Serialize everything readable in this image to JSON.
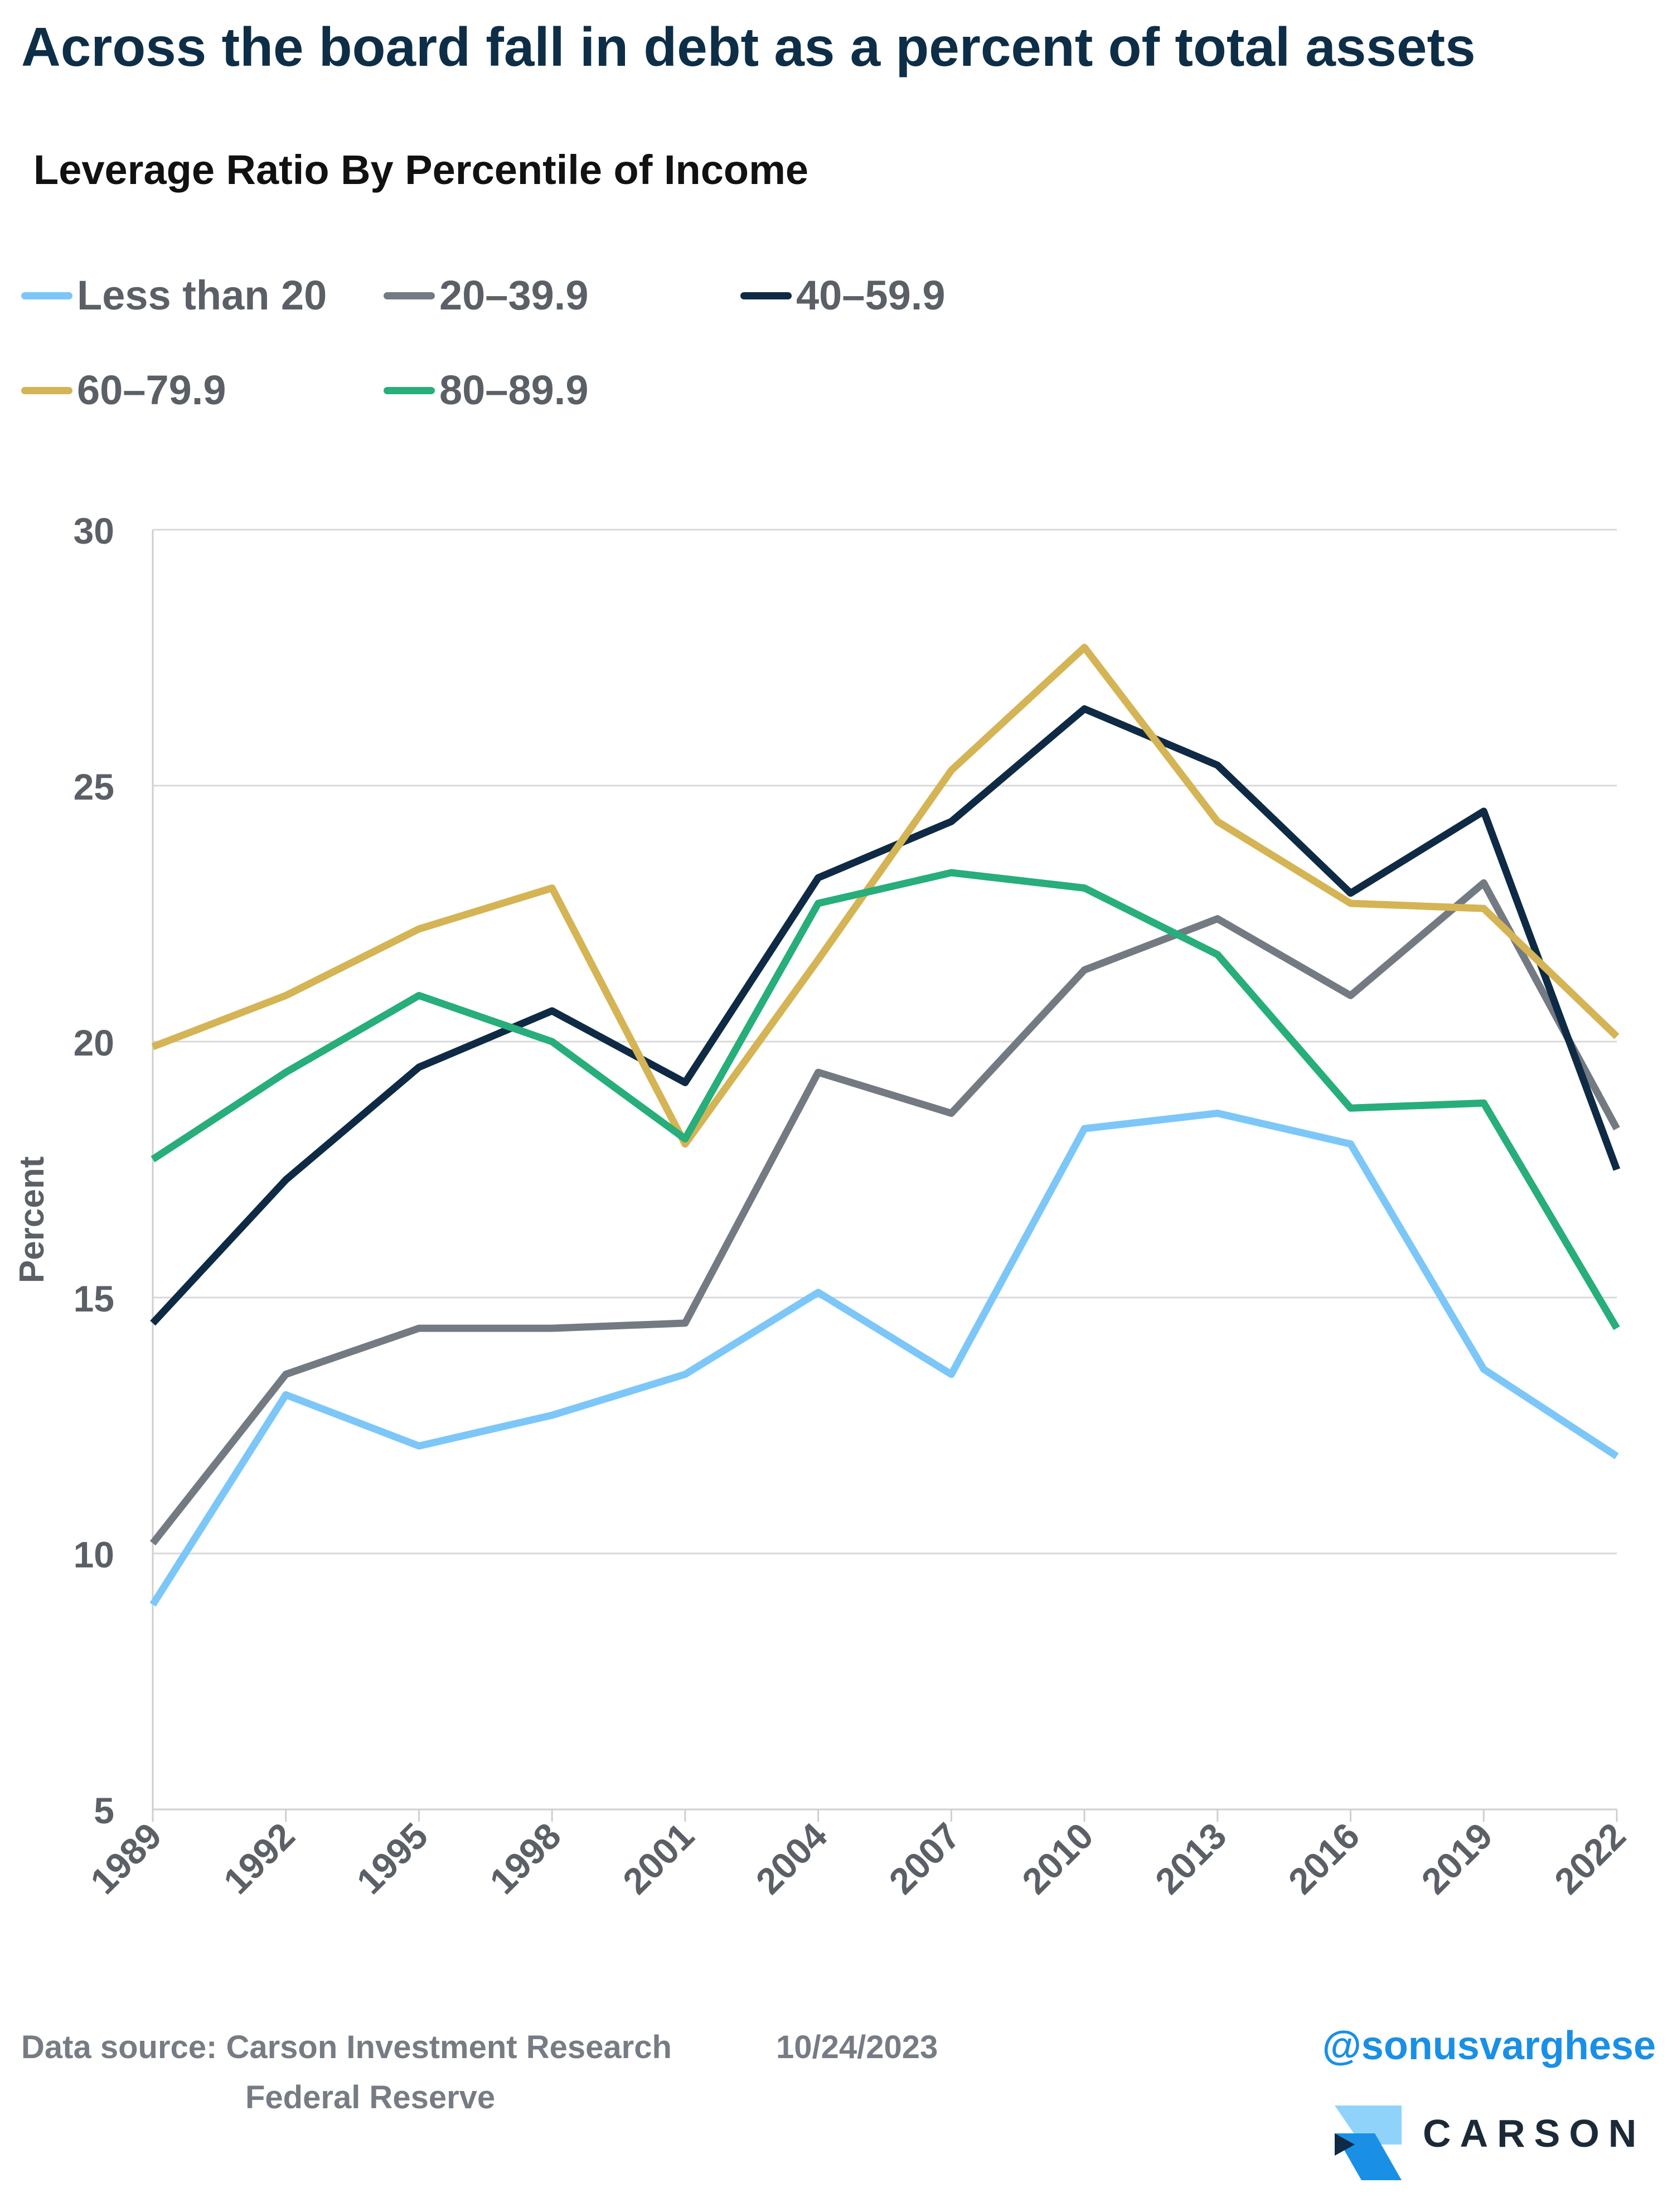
{
  "title": "Across the board fall in debt as a percent of total assets",
  "chart_data": {
    "type": "line",
    "title": "Leverage Ratio By Percentile of Income",
    "xlabel": "",
    "ylabel": "Percent",
    "ylim": [
      5,
      30
    ],
    "yticks": [
      5,
      10,
      15,
      20,
      25,
      30
    ],
    "grid": true,
    "legend_position": "top",
    "categories": [
      "1989",
      "1992",
      "1995",
      "1998",
      "2001",
      "2004",
      "2007",
      "2010",
      "2013",
      "2016",
      "2019",
      "2022"
    ],
    "series": [
      {
        "name": "Less than 20",
        "color": "#7cc7f8",
        "values": [
          9.0,
          13.1,
          12.1,
          12.7,
          13.5,
          15.1,
          13.5,
          18.3,
          18.6,
          18.0,
          13.6,
          11.9
        ]
      },
      {
        "name": "20–39.9",
        "color": "#737a82",
        "values": [
          10.2,
          13.5,
          14.4,
          14.4,
          14.5,
          19.4,
          18.6,
          21.4,
          22.4,
          20.9,
          23.1,
          18.3
        ]
      },
      {
        "name": "40–59.9",
        "color": "#0e2a45",
        "values": [
          14.5,
          17.3,
          19.5,
          20.6,
          19.2,
          23.2,
          24.3,
          26.5,
          25.4,
          22.9,
          24.5,
          17.5
        ]
      },
      {
        "name": "60–79.9",
        "color": "#d4b454",
        "values": [
          19.9,
          20.9,
          22.2,
          23.0,
          18.0,
          21.6,
          25.3,
          27.7,
          24.3,
          22.7,
          22.6,
          20.1
        ]
      },
      {
        "name": "80–89.9",
        "color": "#27ae7a",
        "values": [
          17.7,
          19.4,
          20.9,
          20.0,
          18.1,
          22.7,
          23.3,
          23.0,
          21.7,
          18.7,
          18.8,
          14.4
        ]
      }
    ]
  },
  "footer": {
    "source_label": "Data source: Carson Investment Research",
    "source_line2": "Federal Reserve",
    "date": "10/24/2023",
    "handle": "@sonusvarghese",
    "brand": "CARSON"
  },
  "colors": {
    "title": "#0e2e48",
    "axis_text": "#5b6067",
    "grid": "#d9d9d9",
    "handle": "#1a8fe6",
    "logo_light": "#8fd3fb",
    "logo_dark": "#1a8fe6"
  }
}
